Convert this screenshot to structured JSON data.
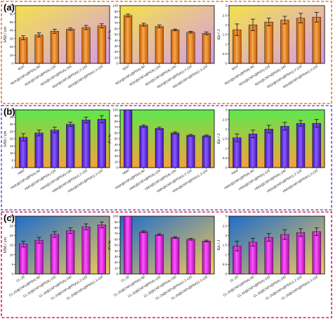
{
  "panels": [
    {
      "label": "(a)",
      "frame_color": "#e07a2e",
      "bg": {
        "type": "diagonal",
        "from": "#f4e14b",
        "to": "#d69be8"
      },
      "bar_colors": {
        "light": "#f7a84a",
        "dark": "#c95a05"
      },
      "categories": [
        "RDX",
        "RDX@CNFs@PDA)-6h",
        "RDX@CNFs@PDA)-12h",
        "RDX@CNFs@PDA)-24h",
        "RDX@CNFs@PDA)1.2-12h",
        "RDX@CNFs@PDA)1.3-12h"
      ],
      "charts": [
        {
          "ylabel": "H50 / cm",
          "ylim": [
            0,
            70
          ],
          "ticks": [
            0,
            10,
            20,
            30,
            40,
            50,
            60,
            70
          ],
          "values": [
            31,
            34.5,
            39,
            41.5,
            43.5,
            45.5
          ],
          "errors": [
            2.5,
            2.5,
            2.5,
            1.5,
            2.5,
            2.5
          ]
        },
        {
          "ylabel": "P / %",
          "ylim": [
            0,
            100
          ],
          "ticks": [
            0,
            10,
            20,
            30,
            40,
            50,
            60,
            70,
            80,
            90,
            100
          ],
          "values": [
            83,
            67,
            64,
            58,
            54,
            52
          ],
          "errors": [
            2.5,
            2.5,
            2.5,
            1.5,
            1.5,
            2.5
          ]
        },
        {
          "ylabel": "Ep / J",
          "ylim": [
            0,
            3.0
          ],
          "ticks": [
            0,
            0.5,
            1.0,
            1.5,
            2.0,
            2.5,
            3.0
          ],
          "values": [
            1.75,
            2.0,
            2.15,
            2.25,
            2.35,
            2.4
          ],
          "errors": [
            0.3,
            0.3,
            0.2,
            0.2,
            0.25,
            0.25
          ]
        }
      ]
    },
    {
      "label": "(b)",
      "frame_color": "#7a55c8",
      "bg": {
        "type": "vertical",
        "from": "#5ee84e",
        "to": "#f5a23a"
      },
      "bar_colors": {
        "light": "#8a5bff",
        "dark": "#3f12b8"
      },
      "categories": [
        "HMX",
        "HMX@CNFs@PDA)-6h",
        "HMX@CNFs@PDA)-12h",
        "HMX@CNFs@PDA)-24h",
        "HMX@CNFs@PDA)1.2-12h",
        "HMX@CNFs@PDA)1.3-12h"
      ],
      "charts": [
        {
          "ylabel": "H50 / cm",
          "ylim": [
            0,
            40
          ],
          "ticks": [
            0,
            5,
            10,
            15,
            20,
            25,
            30,
            35,
            40
          ],
          "values": [
            21,
            24,
            26,
            30,
            33,
            33.5
          ],
          "errors": [
            2.5,
            2,
            2,
            1.5,
            2,
            2.5
          ]
        },
        {
          "ylabel": "P / %",
          "ylim": [
            0,
            100
          ],
          "ticks": [
            0,
            10,
            20,
            30,
            40,
            50,
            60,
            70,
            80,
            90,
            100
          ],
          "values": [
            100,
            72,
            68,
            60,
            56,
            55
          ],
          "errors": [
            0,
            2,
            2,
            2,
            1.5,
            1.5
          ]
        },
        {
          "ylabel": "Ep / J",
          "ylim": [
            0,
            3.0
          ],
          "ticks": [
            0,
            0.5,
            1.0,
            1.5,
            2.0,
            2.5,
            3.0
          ],
          "values": [
            1.55,
            1.75,
            2.0,
            2.15,
            2.3,
            2.3
          ],
          "errors": [
            0.2,
            0.2,
            0.2,
            0.2,
            0.15,
            0.2
          ]
        }
      ]
    },
    {
      "label": "(c)",
      "frame_color": "#e0214f",
      "bg": {
        "type": "diagonal",
        "from": "#1f6dc9",
        "to": "#f4c85a"
      },
      "bar_colors": {
        "light": "#ff55ff",
        "dark": "#b00ab0"
      },
      "categories": [
        "CL-20",
        "CL-20@CNFs@PDA)-6h",
        "CL-20@CNFs@PDA)-12h",
        "CL-20@CNFs@PDA)-24h",
        "CL-20@CNFs@PDA)1.2-12h",
        "CL-20@CNFs@PDA)1.3-12h"
      ],
      "charts": [
        {
          "ylabel": "H50 / cm",
          "ylim": [
            0,
            30
          ],
          "ticks": [
            0,
            5,
            10,
            15,
            20,
            25,
            30
          ],
          "values": [
            15.5,
            17.5,
            20.5,
            22.5,
            24.5,
            25.5
          ],
          "errors": [
            1.5,
            1.5,
            1.5,
            1.5,
            1.5,
            1.5
          ]
        },
        {
          "ylabel": "P / %",
          "ylim": [
            0,
            100
          ],
          "ticks": [
            0,
            10,
            20,
            30,
            40,
            50,
            60,
            70,
            80,
            90,
            100
          ],
          "values": [
            100,
            73,
            68,
            63,
            60,
            57
          ],
          "errors": [
            0,
            1.5,
            1.5,
            1.5,
            1.5,
            1.5
          ]
        },
        {
          "ylabel": "Ep / J",
          "ylim": [
            0,
            3.0
          ],
          "ticks": [
            0,
            0.5,
            1.0,
            1.5,
            2.0,
            2.5,
            3.0
          ],
          "values": [
            1.45,
            1.65,
            1.9,
            2.05,
            2.15,
            2.2
          ],
          "errors": [
            0.25,
            0.2,
            0.2,
            0.25,
            0.2,
            0.2
          ]
        }
      ]
    }
  ],
  "chart_data": [
    {
      "type": "bar",
      "panel": "(a)",
      "ylabel": "H50 / cm",
      "categories": [
        "RDX",
        "RDX@CNFs@PDA)-6h",
        "RDX@CNFs@PDA)-12h",
        "RDX@CNFs@PDA)-24h",
        "RDX@CNFs@PDA)1.2-12h",
        "RDX@CNFs@PDA)1.3-12h"
      ],
      "values": [
        31,
        34.5,
        39,
        41.5,
        43.5,
        45.5
      ],
      "ylim": [
        0,
        70
      ]
    },
    {
      "type": "bar",
      "panel": "(a)",
      "ylabel": "P / %",
      "categories": [
        "RDX",
        "RDX@CNFs@PDA)-6h",
        "RDX@CNFs@PDA)-12h",
        "RDX@CNFs@PDA)-24h",
        "RDX@CNFs@PDA)1.2-12h",
        "RDX@CNFs@PDA)1.3-12h"
      ],
      "values": [
        83,
        67,
        64,
        58,
        54,
        52
      ],
      "ylim": [
        0,
        100
      ]
    },
    {
      "type": "bar",
      "panel": "(a)",
      "ylabel": "Ep / J",
      "categories": [
        "RDX",
        "RDX@CNFs@PDA)-6h",
        "RDX@CNFs@PDA)-12h",
        "RDX@CNFs@PDA)-24h",
        "RDX@CNFs@PDA)1.2-12h",
        "RDX@CNFs@PDA)1.3-12h"
      ],
      "values": [
        1.75,
        2.0,
        2.15,
        2.25,
        2.35,
        2.4
      ],
      "ylim": [
        0,
        3.0
      ]
    },
    {
      "type": "bar",
      "panel": "(b)",
      "ylabel": "H50 / cm",
      "categories": [
        "HMX",
        "HMX@CNFs@PDA)-6h",
        "HMX@CNFs@PDA)-12h",
        "HMX@CNFs@PDA)-24h",
        "HMX@CNFs@PDA)1.2-12h",
        "HMX@CNFs@PDA)1.3-12h"
      ],
      "values": [
        21,
        24,
        26,
        30,
        33,
        33.5
      ],
      "ylim": [
        0,
        40
      ]
    },
    {
      "type": "bar",
      "panel": "(b)",
      "ylabel": "P / %",
      "categories": [
        "HMX",
        "HMX@CNFs@PDA)-6h",
        "HMX@CNFs@PDA)-12h",
        "HMX@CNFs@PDA)-24h",
        "HMX@CNFs@PDA)1.2-12h",
        "HMX@CNFs@PDA)1.3-12h"
      ],
      "values": [
        100,
        72,
        68,
        60,
        56,
        55
      ],
      "ylim": [
        0,
        100
      ]
    },
    {
      "type": "bar",
      "panel": "(b)",
      "ylabel": "Ep / J",
      "categories": [
        "HMX",
        "HMX@CNFs@PDA)-6h",
        "HMX@CNFs@PDA)-12h",
        "HMX@CNFs@PDA)-24h",
        "HMX@CNFs@PDA)1.2-12h",
        "HMX@CNFs@PDA)1.3-12h"
      ],
      "values": [
        1.55,
        1.75,
        2.0,
        2.15,
        2.3,
        2.3
      ],
      "ylim": [
        0,
        3.0
      ]
    },
    {
      "type": "bar",
      "panel": "(c)",
      "ylabel": "H50 / cm",
      "categories": [
        "CL-20",
        "CL-20@CNFs@PDA)-6h",
        "CL-20@CNFs@PDA)-12h",
        "CL-20@CNFs@PDA)-24h",
        "CL-20@CNFs@PDA)1.2-12h",
        "CL-20@CNFs@PDA)1.3-12h"
      ],
      "values": [
        15.5,
        17.5,
        20.5,
        22.5,
        24.5,
        25.5
      ],
      "ylim": [
        0,
        30
      ]
    },
    {
      "type": "bar",
      "panel": "(c)",
      "ylabel": "P / %",
      "categories": [
        "CL-20",
        "CL-20@CNFs@PDA)-6h",
        "CL-20@CNFs@PDA)-12h",
        "CL-20@CNFs@PDA)-24h",
        "CL-20@CNFs@PDA)1.2-12h",
        "CL-20@CNFs@PDA)1.3-12h"
      ],
      "values": [
        100,
        73,
        68,
        63,
        60,
        57
      ],
      "ylim": [
        0,
        100
      ]
    },
    {
      "type": "bar",
      "panel": "(c)",
      "ylabel": "Ep / J",
      "categories": [
        "CL-20",
        "CL-20@CNFs@PDA)-6h",
        "CL-20@CNFs@PDA)-12h",
        "CL-20@CNFs@PDA)-24h",
        "CL-20@CNFs@PDA)1.2-12h",
        "CL-20@CNFs@PDA)1.3-12h"
      ],
      "values": [
        1.45,
        1.65,
        1.9,
        2.05,
        2.15,
        2.2
      ],
      "ylim": [
        0,
        3.0
      ]
    }
  ]
}
